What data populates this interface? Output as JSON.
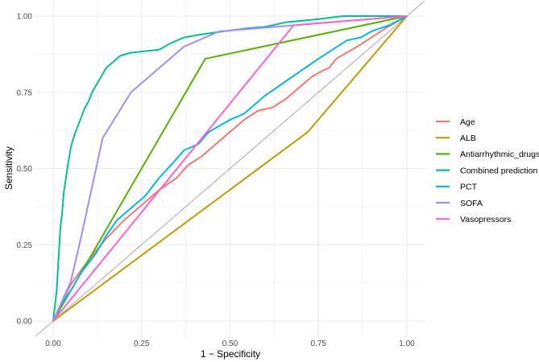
{
  "chart_data": {
    "type": "line",
    "xlabel": "1 − Specificity",
    "ylabel": "Sensitivity",
    "xlim": [
      0,
      1
    ],
    "ylim": [
      0,
      1
    ],
    "x_ticks": [
      "0.00",
      "0.25",
      "0.50",
      "0.75",
      "1.00"
    ],
    "y_ticks": [
      "0.00",
      "0.25",
      "0.50",
      "0.75",
      "1.00"
    ],
    "grid": true,
    "legend_position": "right",
    "reference_line": {
      "from": [
        -0.05,
        -0.05
      ],
      "to": [
        1.05,
        1.05
      ],
      "color": "#999999"
    },
    "series": [
      {
        "name": "Age",
        "color": "#F8766D",
        "points": [
          [
            0,
            0
          ],
          [
            0.05,
            0.12
          ],
          [
            0.1,
            0.2
          ],
          [
            0.15,
            0.27
          ],
          [
            0.2,
            0.33
          ],
          [
            0.25,
            0.38
          ],
          [
            0.3,
            0.43
          ],
          [
            0.35,
            0.47
          ],
          [
            0.38,
            0.51
          ],
          [
            0.42,
            0.54
          ],
          [
            0.46,
            0.58
          ],
          [
            0.5,
            0.62
          ],
          [
            0.54,
            0.66
          ],
          [
            0.58,
            0.69
          ],
          [
            0.62,
            0.7
          ],
          [
            0.66,
            0.73
          ],
          [
            0.7,
            0.77
          ],
          [
            0.73,
            0.8
          ],
          [
            0.76,
            0.82
          ],
          [
            0.78,
            0.83
          ],
          [
            0.8,
            0.86
          ],
          [
            0.83,
            0.88
          ],
          [
            0.86,
            0.9
          ],
          [
            0.9,
            0.93
          ],
          [
            0.94,
            0.96
          ],
          [
            1,
            1
          ]
        ]
      },
      {
        "name": "ALB",
        "color": "#C49A00",
        "points": [
          [
            0,
            0
          ],
          [
            0.72,
            0.62
          ],
          [
            1,
            1
          ]
        ]
      },
      {
        "name": "Antiarrhythmic_drugs",
        "color": "#53B400",
        "points": [
          [
            0,
            0
          ],
          [
            0.43,
            0.86
          ],
          [
            1,
            1
          ]
        ]
      },
      {
        "name": "Combined prediction",
        "color": "#00C094",
        "points": [
          [
            0,
            0
          ],
          [
            0.005,
            0.05
          ],
          [
            0.01,
            0.1
          ],
          [
            0.015,
            0.2
          ],
          [
            0.02,
            0.3
          ],
          [
            0.025,
            0.35
          ],
          [
            0.03,
            0.42
          ],
          [
            0.04,
            0.5
          ],
          [
            0.05,
            0.57
          ],
          [
            0.06,
            0.61
          ],
          [
            0.07,
            0.64
          ],
          [
            0.08,
            0.67
          ],
          [
            0.09,
            0.7
          ],
          [
            0.1,
            0.72
          ],
          [
            0.11,
            0.75
          ],
          [
            0.12,
            0.77
          ],
          [
            0.13,
            0.79
          ],
          [
            0.14,
            0.81
          ],
          [
            0.15,
            0.83
          ],
          [
            0.17,
            0.85
          ],
          [
            0.19,
            0.87
          ],
          [
            0.22,
            0.88
          ],
          [
            0.26,
            0.885
          ],
          [
            0.3,
            0.89
          ],
          [
            0.33,
            0.91
          ],
          [
            0.37,
            0.93
          ],
          [
            0.42,
            0.94
          ],
          [
            0.48,
            0.95
          ],
          [
            0.55,
            0.96
          ],
          [
            0.6,
            0.965
          ],
          [
            0.66,
            0.98
          ],
          [
            0.75,
            0.99
          ],
          [
            0.82,
            1
          ],
          [
            1,
            1
          ]
        ]
      },
      {
        "name": "PCT",
        "color": "#00B6EB",
        "points": [
          [
            0,
            0
          ],
          [
            0.02,
            0.05
          ],
          [
            0.05,
            0.1
          ],
          [
            0.08,
            0.16
          ],
          [
            0.12,
            0.22
          ],
          [
            0.15,
            0.28
          ],
          [
            0.18,
            0.33
          ],
          [
            0.22,
            0.37
          ],
          [
            0.26,
            0.41
          ],
          [
            0.3,
            0.47
          ],
          [
            0.34,
            0.52
          ],
          [
            0.37,
            0.56
          ],
          [
            0.41,
            0.58
          ],
          [
            0.44,
            0.62
          ],
          [
            0.47,
            0.64
          ],
          [
            0.5,
            0.66
          ],
          [
            0.54,
            0.68
          ],
          [
            0.57,
            0.71
          ],
          [
            0.6,
            0.74
          ],
          [
            0.65,
            0.78
          ],
          [
            0.7,
            0.82
          ],
          [
            0.75,
            0.86
          ],
          [
            0.79,
            0.89
          ],
          [
            0.83,
            0.92
          ],
          [
            0.87,
            0.93
          ],
          [
            0.9,
            0.95
          ],
          [
            0.95,
            0.97
          ],
          [
            1,
            1
          ]
        ]
      },
      {
        "name": "SOFA",
        "color": "#A58AFF",
        "points": [
          [
            0,
            0
          ],
          [
            0.05,
            0.13
          ],
          [
            0.08,
            0.28
          ],
          [
            0.14,
            0.6
          ],
          [
            0.22,
            0.75
          ],
          [
            0.37,
            0.9
          ],
          [
            0.47,
            0.95
          ],
          [
            1,
            1
          ]
        ]
      },
      {
        "name": "Vasopressors",
        "color": "#FB61D7",
        "points": [
          [
            0,
            0
          ],
          [
            0.68,
            0.97
          ],
          [
            1,
            1
          ]
        ]
      }
    ]
  }
}
